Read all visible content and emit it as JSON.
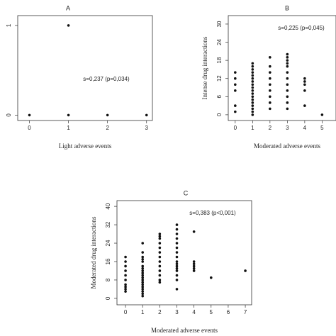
{
  "chart_data": [
    {
      "type": "scatter",
      "title": "A",
      "xlabel": "Light adverse events",
      "annotation": "s=0,237 (p=0,034)",
      "x": [
        0,
        1,
        1,
        2,
        3
      ],
      "values": [
        0,
        1,
        0,
        0,
        0
      ],
      "color": "#111111",
      "xlim": [
        -0.3,
        3.15
      ],
      "ylim": [
        -0.06,
        1.11
      ],
      "xticks": [
        0,
        1,
        2,
        3
      ],
      "yticks": [
        0,
        1
      ]
    },
    {
      "type": "scatter",
      "title": "B",
      "xlabel": "Moderated adverse events",
      "ylabel": "Intense drug interactions",
      "annotation": "s=0,225 (p=0,045)",
      "x": [
        0,
        0,
        0,
        0,
        0,
        0,
        1,
        1,
        1,
        1,
        1,
        1,
        1,
        1,
        1,
        1,
        1,
        1,
        1,
        1,
        1,
        1,
        1,
        1,
        2,
        2,
        2,
        2,
        2,
        2,
        2,
        2,
        2,
        3,
        3,
        3,
        3,
        3,
        3,
        3,
        3,
        3,
        3,
        3,
        3,
        4,
        4,
        4,
        4,
        4,
        5
      ],
      "values": [
        1,
        3,
        8,
        10,
        12,
        14,
        0,
        1,
        2,
        3,
        4,
        5,
        6,
        7,
        8,
        9,
        10,
        11,
        12,
        13,
        14,
        15,
        16,
        17,
        2,
        4,
        6,
        8,
        10,
        12,
        14,
        16,
        19,
        2,
        4,
        6,
        8,
        10,
        12,
        14,
        16,
        17,
        18,
        19,
        20,
        3,
        8,
        10,
        11,
        12,
        0
      ],
      "color": "#111111",
      "xlim": [
        -0.4,
        5.8
      ],
      "ylim": [
        -1.9,
        32.8
      ],
      "xticks": [
        0,
        1,
        2,
        3,
        4,
        5
      ],
      "yticks": [
        0,
        6,
        12,
        18,
        24,
        30
      ]
    },
    {
      "type": "scatter",
      "title": "C",
      "xlabel": "Moderated adverse events",
      "ylabel": "Moderated drug interactions",
      "annotation": "s=0,383 (p<0,001)",
      "x": [
        0,
        0,
        0,
        0,
        0,
        0,
        0,
        0,
        0,
        0,
        1,
        1,
        1,
        1,
        1,
        1,
        1,
        1,
        1,
        1,
        1,
        1,
        1,
        1,
        1,
        1,
        1,
        1,
        1,
        2,
        2,
        2,
        2,
        2,
        2,
        2,
        2,
        2,
        2,
        2,
        2,
        2,
        3,
        3,
        3,
        3,
        3,
        3,
        3,
        3,
        3,
        3,
        3,
        3,
        3,
        3,
        3,
        3,
        4,
        4,
        4,
        4,
        4,
        4,
        5,
        7
      ],
      "values": [
        3,
        4,
        5,
        6,
        8,
        10,
        12,
        14,
        16,
        18,
        1,
        2,
        3,
        4,
        5,
        6,
        7,
        8,
        9,
        10,
        11,
        12,
        13,
        14,
        16,
        17,
        18,
        20,
        24,
        7,
        8,
        10,
        12,
        14,
        16,
        18,
        20,
        22,
        24,
        26,
        27,
        28,
        4,
        8,
        10,
        12,
        13,
        14,
        15,
        16,
        18,
        20,
        22,
        24,
        26,
        28,
        30,
        32,
        12,
        13,
        14,
        15,
        16,
        29,
        9,
        12
      ],
      "color": "#111111",
      "xlim": [
        -0.5,
        7.37
      ],
      "ylim": [
        -2.8,
        42.5
      ],
      "xticks": [
        0,
        1,
        2,
        3,
        4,
        5,
        6,
        7
      ],
      "yticks": [
        0,
        8,
        16,
        24,
        32,
        40
      ]
    }
  ]
}
